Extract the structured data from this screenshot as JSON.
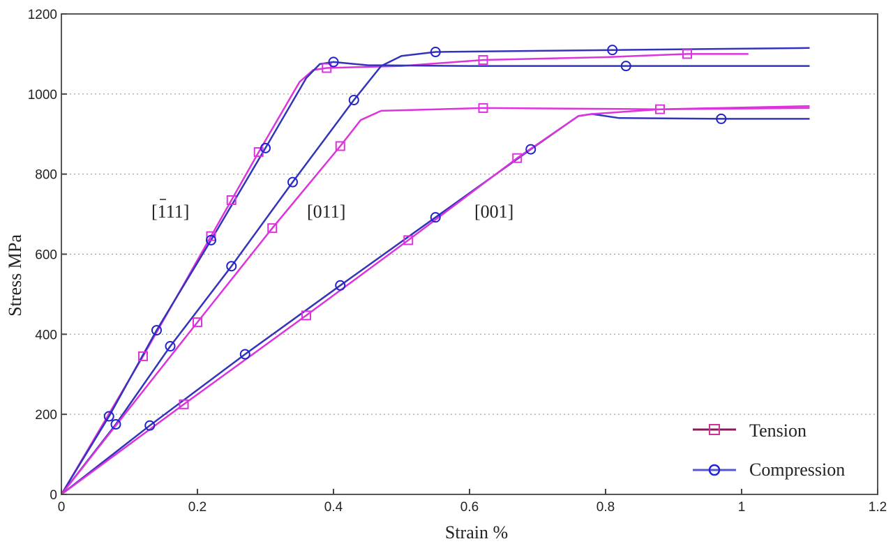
{
  "chart_data": {
    "type": "line",
    "title": "",
    "xlabel": "Strain %",
    "ylabel": "Stress MPa",
    "xlim": [
      0,
      1.2
    ],
    "ylim": [
      0,
      1200
    ],
    "xticks": [
      0,
      0.2,
      0.4,
      0.6,
      0.8,
      1,
      1.2
    ],
    "xtick_labels": [
      "0",
      "0.2",
      "0.4",
      "0.6",
      "0.8",
      "1",
      "1.2"
    ],
    "yticks": [
      0,
      200,
      400,
      600,
      800,
      1000,
      1200
    ],
    "ytick_labels": [
      "0",
      "200",
      "400",
      "600",
      "800",
      "1000",
      "1200"
    ],
    "grid": "horizontal dotted",
    "legend": {
      "position": "lower right",
      "entries": [
        {
          "label": "Tension",
          "color": "#cc33cc",
          "line_color": "#8b1a5a",
          "marker": "square"
        },
        {
          "label": "Compression",
          "color": "#3333cc",
          "line_color": "#4444cc",
          "marker": "circle"
        }
      ]
    },
    "annotations": [
      {
        "text": "[ī11]",
        "display": "[111]",
        "overbar_first_digit": true,
        "x": 0.18,
        "y": 710
      },
      {
        "text": "[011]",
        "x": 0.395,
        "y": 710
      },
      {
        "text": "[001]",
        "x": 0.64,
        "y": 710
      }
    ],
    "series": [
      {
        "name": "[-111] Tension",
        "orientation": "[-111]",
        "loading": "Tension",
        "color": "#dd33dd",
        "marker": "square",
        "x": [
          0,
          0.12,
          0.22,
          0.25,
          0.29,
          0.35,
          0.37,
          0.39,
          0.5,
          0.62,
          0.8,
          0.92,
          1.01
        ],
        "y": [
          0,
          345,
          645,
          735,
          855,
          1030,
          1060,
          1065,
          1070,
          1085,
          1092,
          1100,
          1100
        ],
        "markers": [
          [
            0.12,
            345
          ],
          [
            0.22,
            645
          ],
          [
            0.25,
            735
          ],
          [
            0.29,
            855
          ],
          [
            0.39,
            1065
          ],
          [
            0.62,
            1085
          ],
          [
            0.92,
            1100
          ]
        ]
      },
      {
        "name": "[-111] Compression",
        "orientation": "[-111]",
        "loading": "Compression",
        "color": "#3333bb",
        "marker": "circle",
        "x": [
          0,
          0.07,
          0.14,
          0.22,
          0.3,
          0.36,
          0.38,
          0.4,
          0.45,
          0.6,
          0.83,
          1.1
        ],
        "y": [
          0,
          195,
          410,
          635,
          865,
          1040,
          1075,
          1080,
          1072,
          1070,
          1070,
          1070
        ],
        "markers": [
          [
            0.07,
            195
          ],
          [
            0.14,
            410
          ],
          [
            0.22,
            635
          ],
          [
            0.3,
            865
          ],
          [
            0.4,
            1080
          ],
          [
            0.83,
            1070
          ]
        ]
      },
      {
        "name": "[011] Compression",
        "orientation": "[011]",
        "loading": "Compression",
        "color": "#3333bb",
        "marker": "circle",
        "x": [
          0,
          0.08,
          0.16,
          0.25,
          0.34,
          0.43,
          0.47,
          0.5,
          0.55,
          0.81,
          1.1
        ],
        "y": [
          0,
          175,
          370,
          570,
          780,
          985,
          1070,
          1095,
          1105,
          1110,
          1115
        ],
        "markers": [
          [
            0.08,
            175
          ],
          [
            0.16,
            370
          ],
          [
            0.25,
            570
          ],
          [
            0.34,
            780
          ],
          [
            0.43,
            985
          ],
          [
            0.55,
            1105
          ],
          [
            0.81,
            1110
          ]
        ]
      },
      {
        "name": "[011] Tension",
        "orientation": "[011]",
        "loading": "Tension",
        "color": "#dd33dd",
        "marker": "square",
        "x": [
          0,
          0.2,
          0.31,
          0.41,
          0.44,
          0.47,
          0.62,
          0.88,
          1.1
        ],
        "y": [
          0,
          430,
          665,
          870,
          935,
          958,
          965,
          962,
          965
        ],
        "markers": [
          [
            0.2,
            430
          ],
          [
            0.31,
            665
          ],
          [
            0.41,
            870
          ],
          [
            0.62,
            965
          ],
          [
            0.88,
            962
          ]
        ]
      },
      {
        "name": "[001] Compression",
        "orientation": "[001]",
        "loading": "Compression",
        "color": "#3333bb",
        "marker": "circle",
        "x": [
          0,
          0.13,
          0.27,
          0.41,
          0.55,
          0.69,
          0.76,
          0.78,
          0.82,
          0.97,
          1.1
        ],
        "y": [
          0,
          172,
          350,
          522,
          692,
          862,
          945,
          950,
          940,
          938,
          938
        ],
        "markers": [
          [
            0.13,
            172
          ],
          [
            0.27,
            350
          ],
          [
            0.41,
            522
          ],
          [
            0.55,
            692
          ],
          [
            0.69,
            862
          ],
          [
            0.97,
            938
          ]
        ]
      },
      {
        "name": "[001] Tension",
        "orientation": "[001]",
        "loading": "Tension",
        "color": "#dd33dd",
        "marker": "square",
        "x": [
          0,
          0.18,
          0.36,
          0.51,
          0.67,
          0.76,
          0.78,
          0.88,
          1.1
        ],
        "y": [
          0,
          225,
          447,
          635,
          840,
          945,
          950,
          962,
          970
        ],
        "markers": [
          [
            0.18,
            225
          ],
          [
            0.36,
            447
          ],
          [
            0.51,
            635
          ],
          [
            0.67,
            840
          ]
        ]
      }
    ]
  }
}
